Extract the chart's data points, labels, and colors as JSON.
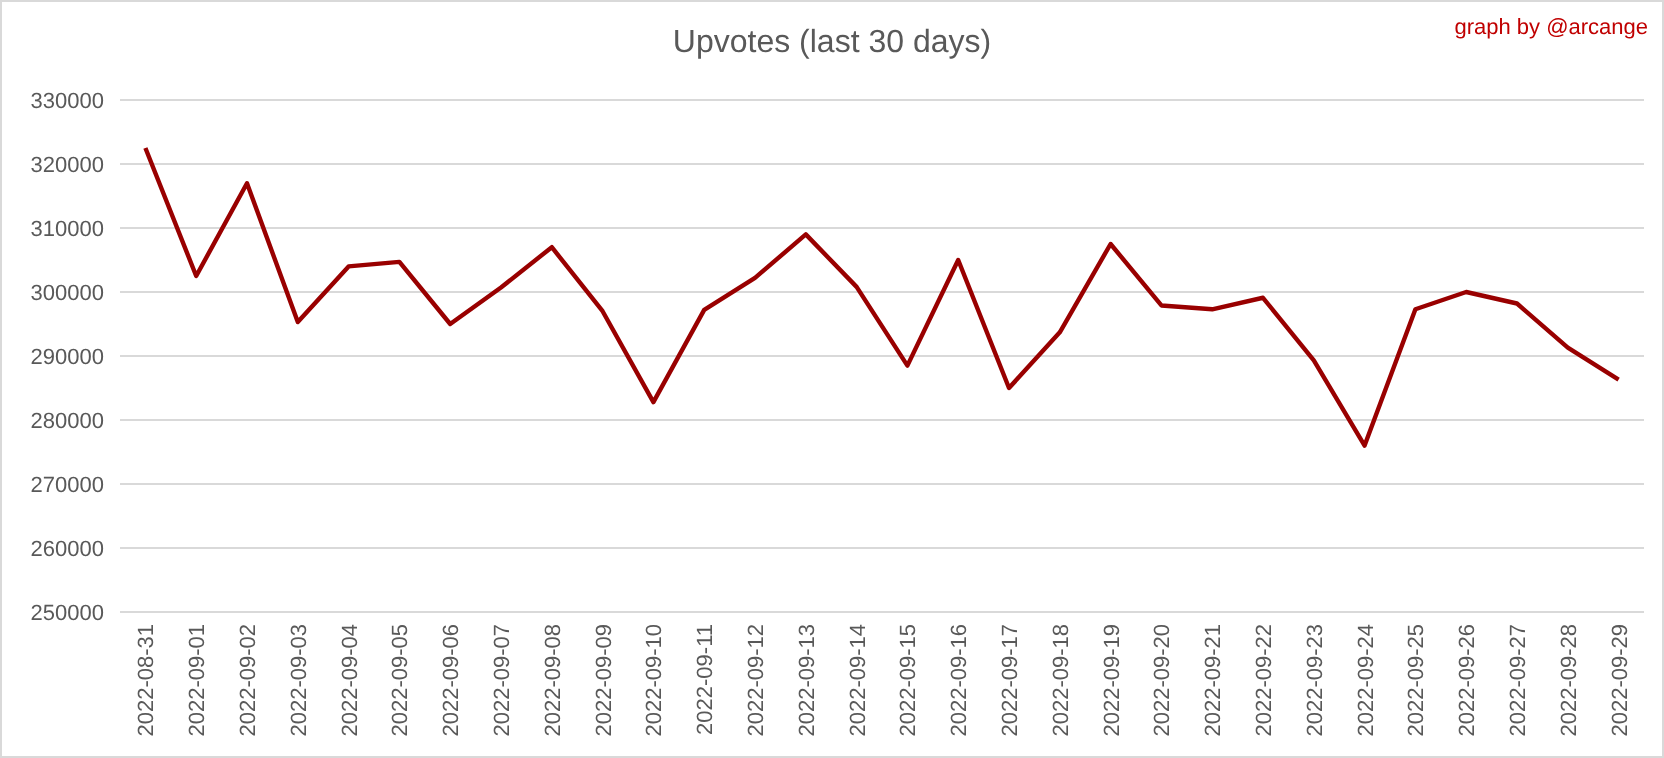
{
  "chart_data": {
    "type": "line",
    "title": "Upvotes (last 30 days)",
    "annotations": [
      "graph by @arcange"
    ],
    "categories": [
      "2022-08-31",
      "2022-09-01",
      "2022-09-02",
      "2022-09-03",
      "2022-09-04",
      "2022-09-05",
      "2022-09-06",
      "2022-09-07",
      "2022-09-08",
      "2022-09-09",
      "2022-09-10",
      "2022-09-11",
      "2022-09-12",
      "2022-09-13",
      "2022-09-14",
      "2022-09-15",
      "2022-09-16",
      "2022-09-17",
      "2022-09-18",
      "2022-09-19",
      "2022-09-20",
      "2022-09-21",
      "2022-09-22",
      "2022-09-23",
      "2022-09-24",
      "2022-09-25",
      "2022-09-26",
      "2022-09-27",
      "2022-09-28",
      "2022-09-29"
    ],
    "series": [
      {
        "color": "#990000",
        "values": [
          322500,
          302500,
          317000,
          295300,
          304000,
          304700,
          295000,
          300700,
          307000,
          297000,
          282800,
          297200,
          302200,
          309000,
          300800,
          288500,
          305000,
          285000,
          293700,
          307500,
          297900,
          297300,
          299100,
          289300,
          276000,
          297300,
          300000,
          298200,
          291300,
          286300
        ]
      }
    ],
    "ylim": [
      250000,
      330000
    ],
    "yticks": [
      250000,
      260000,
      270000,
      280000,
      290000,
      300000,
      310000,
      320000,
      330000
    ],
    "grid": "y",
    "marker": "none",
    "line_style": "solid"
  }
}
